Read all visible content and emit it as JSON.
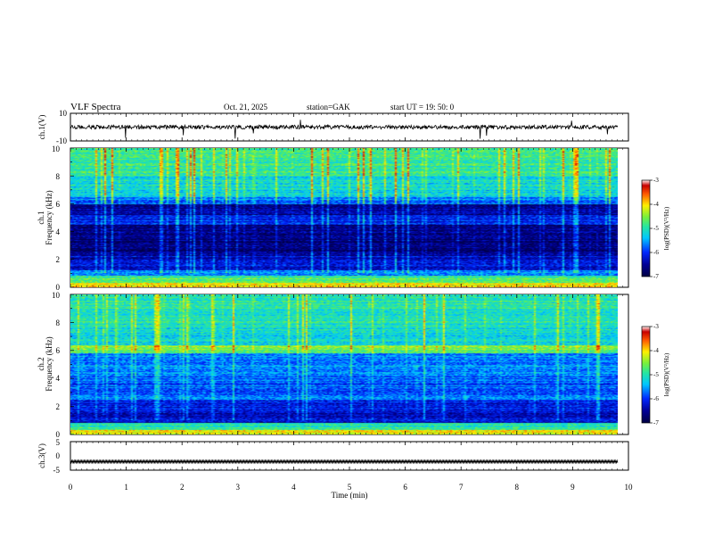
{
  "header": {
    "title": "VLF  Spectra",
    "date": "Oct. 21, 2025",
    "station": "station=GAK",
    "start_ut": "start  UT  =    19: 50: 0"
  },
  "chart_data": [
    {
      "id": "ch1_waveform",
      "type": "line",
      "ylabel": "ch.1(V)",
      "ylim": [
        -10,
        10
      ],
      "y_tick_labels": [
        "10",
        "-10"
      ],
      "xlim": [
        0,
        10
      ],
      "series_color": "#000000"
    },
    {
      "id": "ch1_spectrogram",
      "type": "heatmap",
      "ylabel_top": "ch.1",
      "ylabel": "Frequency  (kHz)",
      "ylim": [
        0,
        10
      ],
      "y_tick_labels": [
        "0",
        "2",
        "4",
        "6",
        "8",
        "10"
      ],
      "xlim": [
        0,
        9.8
      ],
      "colorbar": {
        "label": "log(PSD)(V²/Hz)",
        "range": [
          -7,
          -3
        ],
        "tick_labels": [
          "-3",
          "-4",
          "-5",
          "-6",
          "-7"
        ]
      }
    },
    {
      "id": "ch2_spectrogram",
      "type": "heatmap",
      "ylabel_top": "ch.2",
      "ylabel": "Frequency  (kHz)",
      "ylim": [
        0,
        10
      ],
      "y_tick_labels": [
        "0",
        "2",
        "4",
        "6",
        "8",
        "10"
      ],
      "xlim": [
        0,
        9.8
      ],
      "colorbar": {
        "label": "log(PSD)(V²/Hz)",
        "range": [
          -7,
          -3
        ],
        "tick_labels": [
          "-3",
          "-4",
          "-5",
          "-6",
          "-7"
        ]
      }
    },
    {
      "id": "ch3_waveform",
      "type": "line",
      "ylabel": "ch.3(V)",
      "ylim": [
        -5,
        5
      ],
      "y_tick_labels": [
        "5",
        "0",
        "-5"
      ],
      "xlim": [
        0,
        10
      ],
      "x_tick_labels": [
        "0",
        "1",
        "2",
        "3",
        "4",
        "5",
        "6",
        "7",
        "8",
        "9",
        "10"
      ],
      "xlabel": "Time  (min)",
      "series_color": "#000000"
    }
  ]
}
